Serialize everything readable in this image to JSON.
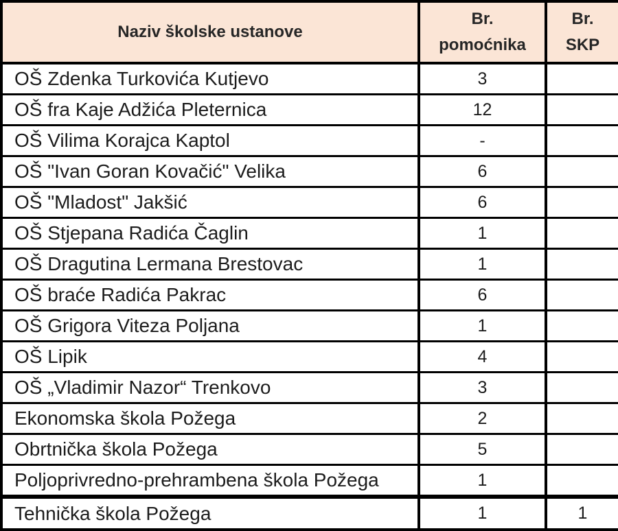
{
  "table": {
    "colors": {
      "header_bg": "#fbe5d6",
      "border": "#000000",
      "body_bg": "#ffffff",
      "text": "#1c1c1c"
    },
    "headers": {
      "name_column": "Naziv školske ustanove",
      "pomocnika_line1": "Br.",
      "pomocnika_line2": "pomoćnika",
      "skp_line1": "Br.",
      "skp_line2": "SKP"
    },
    "rows": [
      {
        "name": "OŠ Zdenka Turkovića Kutjevo",
        "pomocnika": "3",
        "skp": ""
      },
      {
        "name": "OŠ fra Kaje Adžića Pleternica",
        "pomocnika": "12",
        "skp": ""
      },
      {
        "name": "OŠ Vilima Korajca Kaptol",
        "pomocnika": "-",
        "skp": ""
      },
      {
        "name": "OŠ \"Ivan Goran Kovačić\" Velika",
        "pomocnika": "6",
        "skp": ""
      },
      {
        "name": "OŠ \"Mladost\" Jakšić",
        "pomocnika": "6",
        "skp": ""
      },
      {
        "name": "OŠ Stjepana Radića Čaglin",
        "pomocnika": "1",
        "skp": ""
      },
      {
        "name": "OŠ Dragutina Lermana Brestovac",
        "pomocnika": "1",
        "skp": ""
      },
      {
        "name": "OŠ braće Radića Pakrac",
        "pomocnika": "6",
        "skp": ""
      },
      {
        "name": "OŠ Grigora Viteza Poljana",
        "pomocnika": "1",
        "skp": ""
      },
      {
        "name": "OŠ Lipik",
        "pomocnika": "4",
        "skp": ""
      },
      {
        "name": "OŠ „Vladimir Nazor“ Trenkovo",
        "pomocnika": "3",
        "skp": ""
      },
      {
        "name": "Ekonomska škola Požega",
        "pomocnika": "2",
        "skp": ""
      },
      {
        "name": "Obrtnička škola Požega",
        "pomocnika": "5",
        "skp": ""
      },
      {
        "name": "Poljoprivredno-prehrambena škola Požega",
        "pomocnika": "1",
        "skp": ""
      },
      {
        "name": "Tehnička škola Požega",
        "pomocnika": "1",
        "skp": "1"
      }
    ]
  }
}
